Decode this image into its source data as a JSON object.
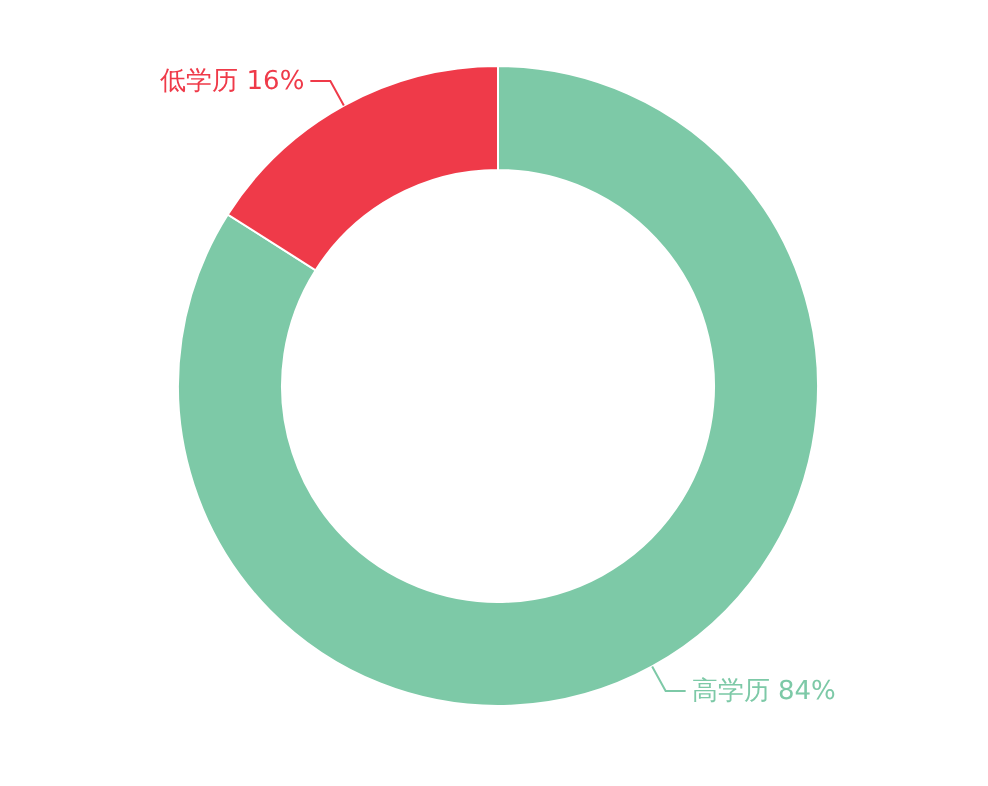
{
  "chart_data": {
    "type": "donut",
    "categories": [
      "高学历",
      "低学历"
    ],
    "values": [
      84,
      16
    ],
    "colors": [
      "#7dc9a7",
      "#ef3a49"
    ],
    "value_labels": [
      "84%",
      "16%"
    ]
  }
}
